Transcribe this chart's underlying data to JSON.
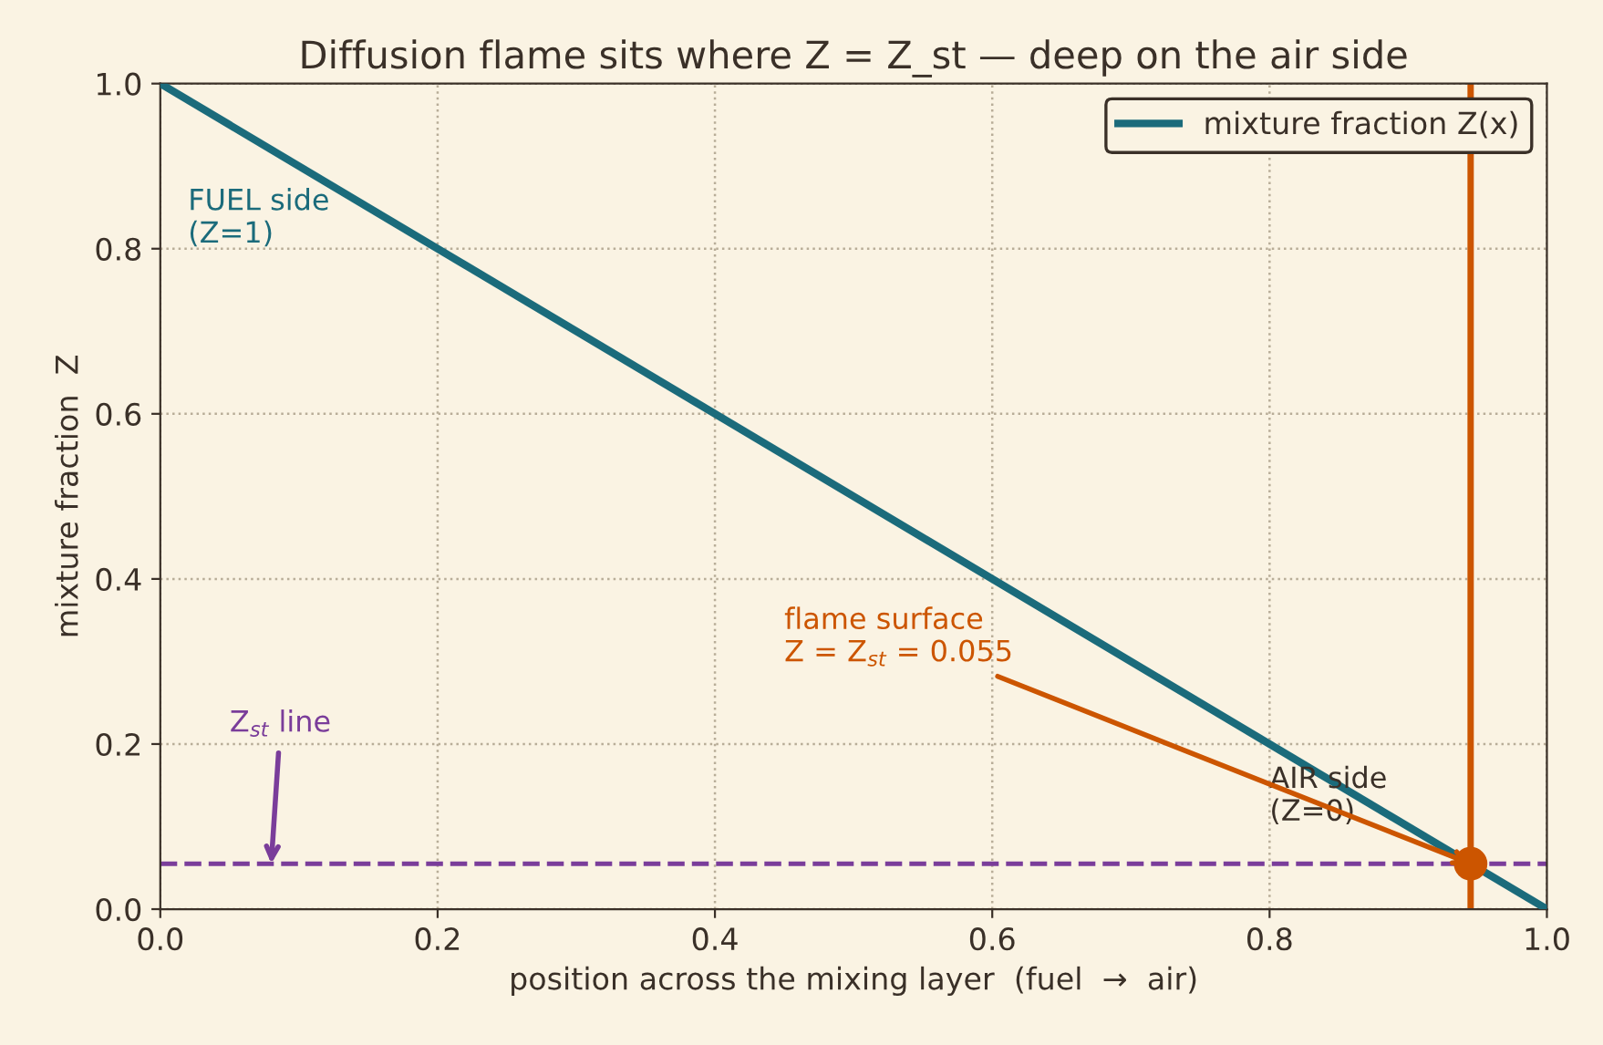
{
  "chart_data": {
    "type": "line",
    "title": "Diffusion flame sits where Z = Z_st — deep on the air side",
    "xlabel": "position across the mixing layer  (fuel  →  air)",
    "ylabel": "mixture fraction  Z",
    "x": [
      0,
      1
    ],
    "series": [
      {
        "name": "mixture fraction Z(x)",
        "color": "#1b6b7b",
        "values": [
          1,
          0
        ],
        "line_style": "solid",
        "marker": "none"
      },
      {
        "type": "scatter",
        "color": "#cc5500",
        "x": [
          0.945
        ],
        "values": [
          0.055
        ],
        "marker": "circle"
      }
    ],
    "xlim": [
      0,
      1
    ],
    "ylim": [
      0,
      1
    ],
    "xticks": [
      {
        "value": 0,
        "label": "0.0"
      },
      0.2,
      0.4,
      0.6,
      0.8,
      {
        "value": 1,
        "label": "1.0"
      }
    ],
    "yticks": [
      {
        "value": 0,
        "label": "0.0"
      },
      0.2,
      0.4,
      0.6,
      0.8,
      {
        "value": 1,
        "label": "1.0"
      }
    ],
    "ref_lines": [
      {
        "axis": "x",
        "value": 0.945,
        "color": "#cc5500",
        "line_style": "solid"
      },
      {
        "axis": "y",
        "value": 0.055,
        "color": "#7a3d9a",
        "line_style": "dashed"
      }
    ],
    "annotations": [
      "FUEL side\n(Z=1)",
      "AIR side\n(Z=0)",
      {
        "text": "flame surface\nZ = Z$_{st}$ = 0.055",
        "x": 0.945,
        "y": 0.055
      },
      {
        "text": "Z$_{st}$ line",
        "x": 0.08,
        "y": 0.055
      }
    ],
    "grid": true,
    "legend": "top right"
  }
}
